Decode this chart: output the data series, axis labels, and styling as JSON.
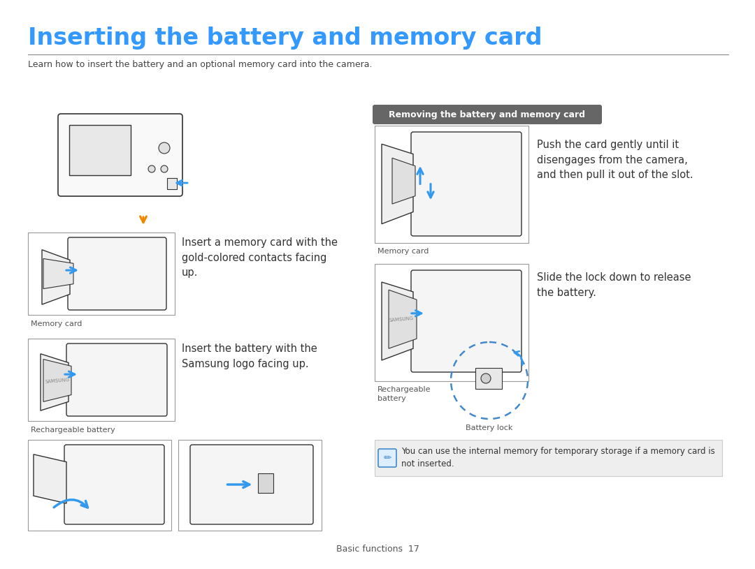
{
  "title": "Inserting the battery and memory card",
  "subtitle": "Learn how to insert the battery and an optional memory card into the camera.",
  "title_color": "#3399ff",
  "subtitle_color": "#444444",
  "separator_color": "#888888",
  "background_color": "#ffffff",
  "body_text_color": "#333333",
  "label_text_color": "#555555",
  "page_footer": "Basic functions  17",
  "section_header": "Removing the battery and memory card",
  "section_header_bg": "#666666",
  "section_header_text_color": "#ffffff",
  "text_insert_memory": "Insert a memory card with the\ngold-colored contacts facing\nup.",
  "text_insert_battery": "Insert the battery with the\nSamsung logo facing up.",
  "text_push_card": "Push the card gently until it\ndisengages from the camera,\nand then pull it out of the slot.",
  "text_slide_lock": "Slide the lock down to release\nthe battery.",
  "label_memory_card_left": "Memory card",
  "label_rechargeable_left": "Rechargeable battery",
  "label_memory_card_right": "Memory card",
  "label_rechargeable_right": "Rechargeable\nbattery",
  "label_battery_lock": "Battery lock",
  "note_text": "You can use the internal memory for temporary storage if a memory card is\nnot inserted.",
  "note_icon_color": "#4488cc",
  "note_bg_color": "#eeeeee",
  "note_border_color": "#cccccc",
  "image_border_color": "#999999",
  "image_bg_color": "#ffffff",
  "arrow_color_blue": "#3399ee",
  "arrow_color_orange": "#ee8800",
  "dashed_circle_color": "#4488cc",
  "line_color": "#333333",
  "font_size_body": 10.5,
  "font_size_label": 8.0,
  "font_size_title": 24,
  "font_size_subtitle": 9.0
}
